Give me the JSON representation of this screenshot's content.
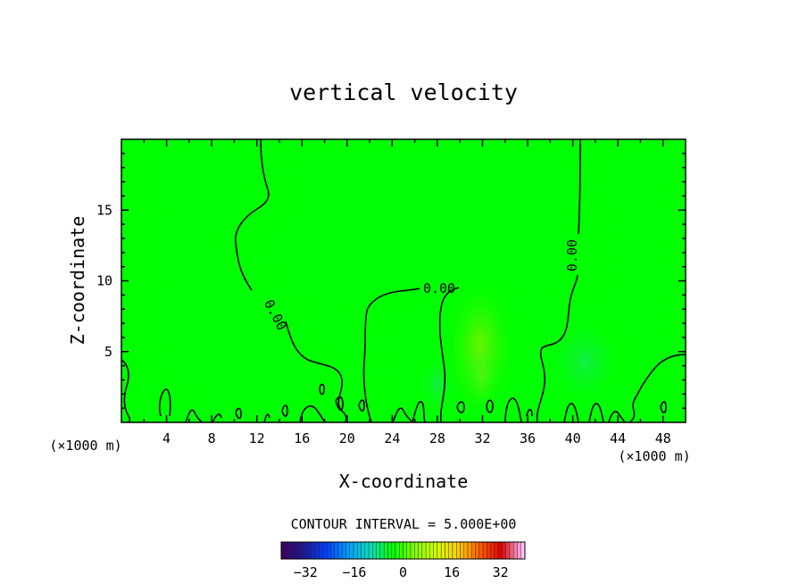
{
  "chart_data": {
    "type": "heatmap",
    "title": "vertical velocity",
    "xlabel": "X-coordinate",
    "ylabel": "Z-coordinate",
    "x_unit_left": "(×1000 m)",
    "x_unit_right": "(×1000 m)",
    "xlim": [
      0,
      50
    ],
    "ylim": [
      0,
      20
    ],
    "x_ticks": [
      4,
      8,
      12,
      16,
      20,
      24,
      28,
      32,
      36,
      40,
      44,
      48
    ],
    "y_ticks": [
      5,
      10,
      15
    ],
    "contour_interval_text": "CONTOUR INTERVAL = 5.000E+00",
    "contour_labels": [
      "0.00",
      "0.00",
      "0.00",
      "0.00"
    ],
    "colorbar": {
      "ticks": [
        -32,
        -16,
        0,
        16,
        32
      ],
      "range": [
        -40,
        40
      ],
      "colors": [
        "#3a0060",
        "#1a1a9a",
        "#0040ff",
        "#00a0ff",
        "#00e0c0",
        "#00ff00",
        "#80ff00",
        "#d0ff00",
        "#ffd000",
        "#ff6000",
        "#e00000",
        "#ffc0ff"
      ]
    },
    "background_value": 0,
    "background_color": "#00ff00"
  }
}
